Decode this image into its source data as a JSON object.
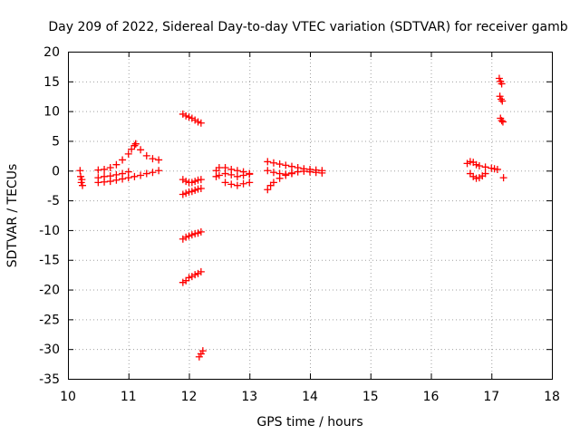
{
  "chart_data": {
    "type": "scatter",
    "title": "Day 209 of 2022, Sidereal Day-to-day VTEC variation (SDTVAR) for receiver gamb",
    "xlabel": "GPS time / hours",
    "ylabel": "SDTVAR / TECUs",
    "xlim": [
      10,
      18
    ],
    "ylim": [
      -35,
      20
    ],
    "xticks": [
      10,
      11,
      12,
      13,
      14,
      15,
      16,
      17,
      18
    ],
    "yticks": [
      20,
      15,
      10,
      5,
      0,
      -5,
      -10,
      -15,
      -20,
      -25,
      -30,
      -35
    ],
    "grid": true,
    "marker": "plus",
    "color": "#ff0000",
    "series": [
      {
        "name": "arc-10.2",
        "x": [
          10.2,
          10.21,
          10.22,
          10.23,
          10.24
        ],
        "y": [
          0.0,
          -1.0,
          -2.0,
          -1.5,
          -2.5
        ]
      },
      {
        "name": "arc-10.5-rise",
        "x": [
          10.5,
          10.6,
          10.7,
          10.8,
          10.9,
          11.0,
          11.05,
          11.1,
          11.12
        ],
        "y": [
          0.1,
          0.2,
          0.5,
          1.0,
          1.8,
          2.8,
          3.6,
          4.2,
          4.5
        ]
      },
      {
        "name": "arc-11.1-decay",
        "x": [
          11.12,
          11.2,
          11.3,
          11.4,
          11.5
        ],
        "y": [
          4.5,
          3.5,
          2.5,
          2.0,
          1.8
        ]
      },
      {
        "name": "arc-10.5-lower",
        "x": [
          10.5,
          10.6,
          10.7,
          10.8,
          10.9,
          11.0,
          11.1,
          11.2,
          11.3,
          11.4,
          11.5
        ],
        "y": [
          -2.0,
          -1.9,
          -1.8,
          -1.6,
          -1.4,
          -1.2,
          -1.0,
          -0.8,
          -0.5,
          -0.3,
          0.0
        ]
      },
      {
        "name": "arc-10.5-mid",
        "x": [
          10.5,
          10.6,
          10.7,
          10.8,
          10.9,
          11.0
        ],
        "y": [
          -1.2,
          -1.0,
          -0.9,
          -0.7,
          -0.5,
          -0.2
        ]
      },
      {
        "name": "arc-11.9-high",
        "x": [
          11.9,
          11.95,
          12.0,
          12.05,
          12.1,
          12.15,
          12.2
        ],
        "y": [
          9.5,
          9.2,
          9.0,
          8.8,
          8.5,
          8.2,
          8.0
        ]
      },
      {
        "name": "arc-11.9-zero",
        "x": [
          11.9,
          11.95,
          12.0,
          12.05,
          12.1,
          12.15,
          12.2
        ],
        "y": [
          -1.5,
          -1.8,
          -2.0,
          -2.0,
          -1.8,
          -1.6,
          -1.5
        ]
      },
      {
        "name": "arc-11.9-neg4",
        "x": [
          11.9,
          11.95,
          12.0,
          12.05,
          12.1,
          12.15,
          12.2
        ],
        "y": [
          -4.0,
          -3.8,
          -3.6,
          -3.5,
          -3.3,
          -3.1,
          -3.0
        ]
      },
      {
        "name": "arc-11.9-neg11",
        "x": [
          11.9,
          11.95,
          12.0,
          12.05,
          12.1,
          12.15,
          12.2
        ],
        "y": [
          -11.5,
          -11.2,
          -11.0,
          -10.8,
          -10.6,
          -10.5,
          -10.3
        ]
      },
      {
        "name": "arc-11.9-neg18",
        "x": [
          11.9,
          11.95,
          12.0,
          12.05,
          12.1,
          12.15,
          12.2
        ],
        "y": [
          -18.8,
          -18.5,
          -18.0,
          -17.8,
          -17.5,
          -17.3,
          -17.0
        ]
      },
      {
        "name": "arc-12.2-neg30",
        "x": [
          12.17,
          12.2,
          12.23
        ],
        "y": [
          -31.3,
          -30.8,
          -30.3
        ]
      },
      {
        "name": "arc-12.5-upper",
        "x": [
          12.45,
          12.5,
          12.6,
          12.7,
          12.8,
          12.9,
          13.0
        ],
        "y": [
          0.0,
          0.5,
          0.5,
          0.2,
          0.0,
          -0.2,
          -0.5
        ]
      },
      {
        "name": "arc-12.5-mid",
        "x": [
          12.45,
          12.5,
          12.6,
          12.7,
          12.8,
          12.9,
          13.0
        ],
        "y": [
          -1.0,
          -0.8,
          -0.5,
          -0.7,
          -1.0,
          -0.8,
          -0.6
        ]
      },
      {
        "name": "arc-12.5-lower",
        "x": [
          12.6,
          12.7,
          12.8,
          12.9,
          13.0
        ],
        "y": [
          -2.0,
          -2.3,
          -2.5,
          -2.2,
          -2.0
        ]
      },
      {
        "name": "arc-13.3-upper",
        "x": [
          13.3,
          13.4,
          13.5,
          13.6,
          13.7,
          13.8,
          13.9,
          14.0,
          14.1,
          14.2
        ],
        "y": [
          1.5,
          1.3,
          1.1,
          0.9,
          0.7,
          0.5,
          0.3,
          0.2,
          0.1,
          0.0
        ]
      },
      {
        "name": "arc-13.3-lower",
        "x": [
          13.3,
          13.35,
          13.4,
          13.5,
          13.6,
          13.7,
          13.8,
          13.9,
          14.0,
          14.1,
          14.2
        ],
        "y": [
          -3.2,
          -2.5,
          -2.0,
          -1.3,
          -0.8,
          -0.4,
          -0.2,
          -0.1,
          -0.2,
          -0.3,
          -0.4
        ]
      },
      {
        "name": "arc-13.3-mid",
        "x": [
          13.3,
          13.4,
          13.5,
          13.6,
          13.7
        ],
        "y": [
          0.0,
          -0.3,
          -0.5,
          -0.6,
          -0.5
        ]
      },
      {
        "name": "arc-16.6-upper",
        "x": [
          16.6,
          16.65,
          16.7,
          16.75,
          16.8,
          16.9,
          17.0,
          17.05,
          17.1
        ],
        "y": [
          1.2,
          1.5,
          1.4,
          1.0,
          0.8,
          0.6,
          0.4,
          0.3,
          0.2
        ]
      },
      {
        "name": "arc-16.6-lower",
        "x": [
          16.65,
          16.7,
          16.75,
          16.8,
          16.85,
          16.9
        ],
        "y": [
          -0.5,
          -1.0,
          -1.3,
          -1.2,
          -0.9,
          -0.5
        ]
      },
      {
        "name": "arc-17.1-stack",
        "x": [
          17.13,
          17.15,
          17.17,
          17.14,
          17.16,
          17.18,
          17.15,
          17.17,
          17.19,
          17.2
        ],
        "y": [
          15.5,
          15.0,
          14.6,
          12.5,
          12.0,
          11.7,
          8.8,
          8.4,
          8.2,
          -1.2
        ]
      }
    ]
  }
}
